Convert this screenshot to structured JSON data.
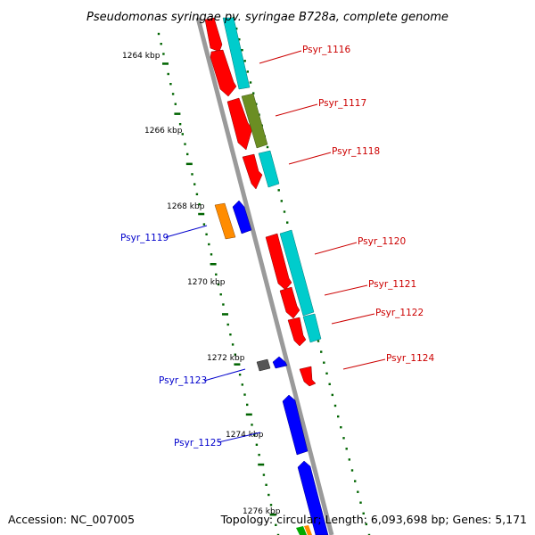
{
  "title": "Pseudomonas syringae pv. syringae B728a, complete genome",
  "accession_text": "Accession: NC_007005",
  "summary_text": "Topology: circular; Length: 6,093,698 bp; Genes: 5,171",
  "ruler_labels": [
    "1264 kbp",
    "1266 kbp",
    "1268 kbp",
    "1270 kbp",
    "1272 kbp",
    "1274 kbp",
    "1276 kbp"
  ],
  "gene_labels": [
    {
      "text": "Psyr_1116",
      "strand": "forward"
    },
    {
      "text": "Psyr_1117",
      "strand": "forward"
    },
    {
      "text": "Psyr_1118",
      "strand": "forward"
    },
    {
      "text": "Psyr_1119",
      "strand": "reverse"
    },
    {
      "text": "Psyr_1120",
      "strand": "forward"
    },
    {
      "text": "Psyr_1121",
      "strand": "forward"
    },
    {
      "text": "Psyr_1122",
      "strand": "forward"
    },
    {
      "text": "Psyr_1123",
      "strand": "reverse"
    },
    {
      "text": "Psyr_1124",
      "strand": "forward"
    },
    {
      "text": "Psyr_1125",
      "strand": "reverse"
    }
  ],
  "colors": {
    "forward_cds": "#ff0000",
    "reverse_cds": "#0000ff",
    "cog_cyan": "#00cccc",
    "cog_olive": "#6b8e23",
    "cog_orange": "#ff8c00",
    "cog_gray": "#555555",
    "backbone": "#888888",
    "ruler_dots": "#006400",
    "forward_label": "#cc0000",
    "reverse_label": "#0000cc"
  }
}
